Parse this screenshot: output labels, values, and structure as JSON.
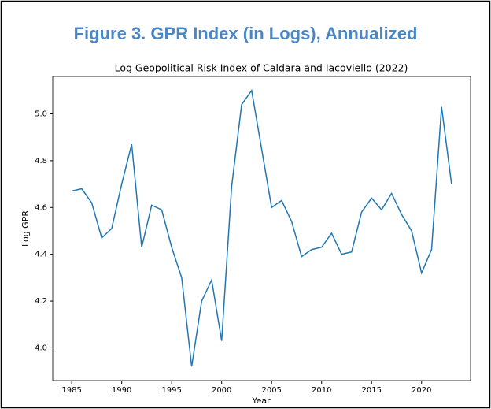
{
  "chart_data": {
    "type": "line",
    "figure_title": "Figure 3. GPR Index (in Logs), Annualized",
    "title": "Log Geopolitical Risk Index of Caldara and Iacoviello (2022)",
    "xlabel": "Year",
    "ylabel": "Log GPR",
    "x": [
      1985,
      1986,
      1987,
      1988,
      1989,
      1990,
      1991,
      1992,
      1993,
      1994,
      1995,
      1996,
      1997,
      1998,
      1999,
      2000,
      2001,
      2002,
      2003,
      2004,
      2005,
      2006,
      2007,
      2008,
      2009,
      2010,
      2011,
      2012,
      2013,
      2014,
      2015,
      2016,
      2017,
      2018,
      2019,
      2020,
      2021,
      2022,
      2023
    ],
    "values": [
      4.67,
      4.68,
      4.62,
      4.47,
      4.51,
      4.7,
      4.87,
      4.43,
      4.61,
      4.59,
      4.43,
      4.3,
      3.92,
      4.2,
      4.29,
      4.03,
      4.69,
      5.04,
      5.1,
      4.85,
      4.6,
      4.63,
      4.54,
      4.39,
      4.42,
      4.43,
      4.49,
      4.4,
      4.41,
      4.58,
      4.64,
      4.59,
      4.66,
      4.57,
      4.5,
      4.32,
      4.42,
      5.03,
      4.7
    ],
    "color": "#1f77b4",
    "xlim": [
      1983.1,
      2024.9
    ],
    "xticks": [
      1985,
      1990,
      1995,
      2000,
      2005,
      2010,
      2015,
      2020
    ],
    "ylim": [
      3.86,
      5.16
    ],
    "yticks": [
      {
        "value": 4.0,
        "label": "4.0"
      },
      {
        "value": 4.2,
        "label": "4.2"
      },
      {
        "value": 4.4,
        "label": "4.4"
      },
      {
        "value": 4.6,
        "label": "4.6"
      },
      {
        "value": 4.8,
        "label": "4.8"
      },
      {
        "value": 5.0,
        "label": "5.0"
      }
    ]
  }
}
